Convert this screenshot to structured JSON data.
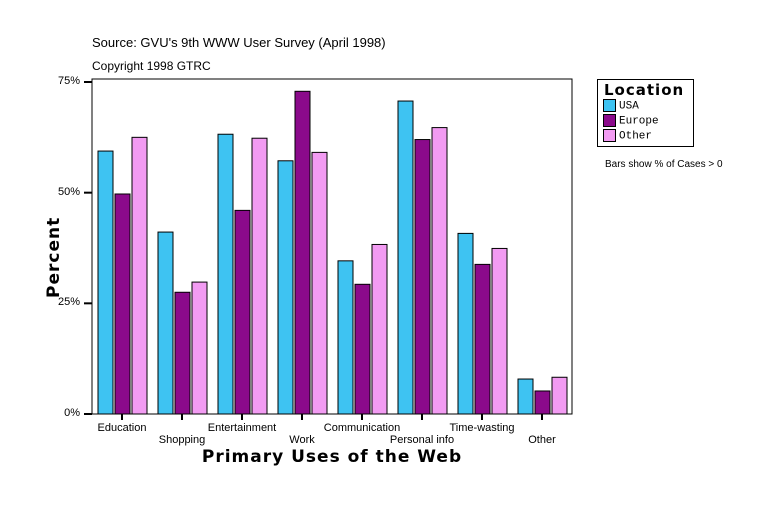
{
  "chart_data": {
    "type": "bar",
    "title": "Source: GVU's 9th WWW User Survey (April 1998)",
    "subtitle": "Copyright 1998 GTRC",
    "xlabel": "Primary Uses of the Web",
    "ylabel": "Percent",
    "ylim": [
      0,
      75
    ],
    "yticks": [
      "0%",
      "25%",
      "50%",
      "75%"
    ],
    "yticks_values": [
      0,
      25,
      50,
      75
    ],
    "grid": false,
    "legend_title": "Location",
    "legend_placement": "right",
    "note": "Bars show % of Cases > 0",
    "categories": [
      "Education",
      "Shopping",
      "Entertainment",
      "Work",
      "Communication",
      "Personal info",
      "Time-wasting",
      "Other"
    ],
    "series": [
      {
        "name": "USA",
        "color": "#3ec3f2",
        "values": [
          59.4,
          41.1,
          63.2,
          57.2,
          34.6,
          70.7,
          40.8,
          7.9
        ]
      },
      {
        "name": "Europe",
        "color": "#8b0a8b",
        "values": [
          49.7,
          27.5,
          46.0,
          72.9,
          29.3,
          62.0,
          33.8,
          5.2
        ]
      },
      {
        "name": "Other",
        "color": "#f29bf2",
        "values": [
          62.5,
          29.8,
          62.3,
          59.1,
          38.3,
          64.7,
          37.4,
          8.3
        ]
      }
    ]
  }
}
